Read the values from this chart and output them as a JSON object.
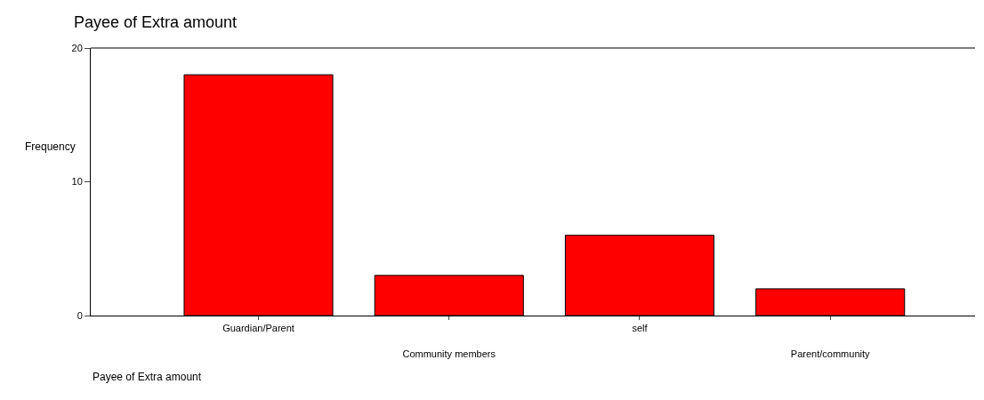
{
  "chart_data": {
    "type": "bar",
    "title": "Payee of Extra amount",
    "xlabel": "Payee of Extra amount",
    "ylabel": "Frequency",
    "categories": [
      "Guardian/Parent",
      "Community members",
      "self",
      "Parent/community"
    ],
    "values": [
      18,
      3,
      6,
      2
    ],
    "color": "#ff0000",
    "ylim": [
      0,
      20
    ],
    "yticks": [
      0,
      10,
      20
    ]
  }
}
